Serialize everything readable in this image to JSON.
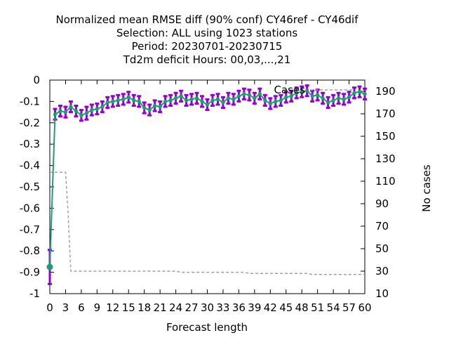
{
  "chart_data": {
    "type": "line",
    "title_lines": [
      "Normalized mean RMSE diff (90% conf) CY46ref - CY46dif",
      "Selection: ALL using  1023 stations",
      "Period: 20230701-20230715",
      "Td2m deficit   Hours:  00,03,...,21"
    ],
    "xlabel": "Forecast length",
    "ylabel_right": "No cases",
    "xlim": [
      0,
      60
    ],
    "ylim": [
      -1,
      0
    ],
    "y2lim": [
      10,
      200
    ],
    "x_ticks": [
      "0",
      "3",
      "6",
      "9",
      "12",
      "15",
      "18",
      "21",
      "24",
      "27",
      "30",
      "33",
      "36",
      "39",
      "42",
      "45",
      "48",
      "51",
      "54",
      "57",
      "60"
    ],
    "y_ticks": [
      "0",
      "-0.1",
      "-0.2",
      "-0.3",
      "-0.4",
      "-0.5",
      "-0.6",
      "-0.7",
      "-0.8",
      "-0.9",
      "-1"
    ],
    "y2_ticks": [
      "190",
      "170",
      "150",
      "130",
      "110",
      "90",
      "70",
      "50",
      "30",
      "10"
    ],
    "legend": {
      "cases_label": "Cases",
      "placement": "top-right"
    },
    "series": [
      {
        "name": "rmse-diff",
        "color": "#1aa070",
        "errcolor": "#9400d3",
        "x": [
          0,
          1,
          2,
          3,
          4,
          5,
          6,
          7,
          8,
          9,
          10,
          11,
          12,
          13,
          14,
          15,
          16,
          17,
          18,
          19,
          20,
          21,
          22,
          23,
          24,
          25,
          26,
          27,
          28,
          29,
          30,
          31,
          32,
          33,
          34,
          35,
          36,
          37,
          38,
          39,
          40,
          41,
          42,
          43,
          44,
          45,
          46,
          47,
          48,
          49,
          50,
          51,
          52,
          53,
          54,
          55,
          56,
          57,
          58,
          59,
          60
        ],
        "y": [
          -0.875,
          -0.16,
          -0.145,
          -0.15,
          -0.125,
          -0.145,
          -0.165,
          -0.155,
          -0.14,
          -0.135,
          -0.125,
          -0.105,
          -0.1,
          -0.095,
          -0.09,
          -0.08,
          -0.095,
          -0.1,
          -0.13,
          -0.14,
          -0.12,
          -0.125,
          -0.1,
          -0.095,
          -0.085,
          -0.075,
          -0.095,
          -0.09,
          -0.085,
          -0.1,
          -0.115,
          -0.095,
          -0.09,
          -0.105,
          -0.085,
          -0.09,
          -0.075,
          -0.065,
          -0.07,
          -0.085,
          -0.065,
          -0.095,
          -0.11,
          -0.1,
          -0.095,
          -0.08,
          -0.075,
          -0.06,
          -0.055,
          -0.05,
          -0.075,
          -0.07,
          -0.085,
          -0.105,
          -0.095,
          -0.085,
          -0.09,
          -0.08,
          -0.06,
          -0.055,
          -0.065
        ],
        "err": [
          0.08,
          0.025,
          0.025,
          0.025,
          0.025,
          0.025,
          0.025,
          0.03,
          0.025,
          0.025,
          0.025,
          0.025,
          0.025,
          0.025,
          0.025,
          0.025,
          0.025,
          0.025,
          0.025,
          0.025,
          0.025,
          0.025,
          0.025,
          0.025,
          0.025,
          0.025,
          0.025,
          0.025,
          0.025,
          0.025,
          0.025,
          0.025,
          0.025,
          0.025,
          0.025,
          0.025,
          0.025,
          0.025,
          0.025,
          0.025,
          0.025,
          0.025,
          0.025,
          0.025,
          0.025,
          0.025,
          0.025,
          0.025,
          0.025,
          0.025,
          0.025,
          0.025,
          0.025,
          0.025,
          0.025,
          0.025,
          0.025,
          0.025,
          0.025,
          0.025,
          0.025
        ]
      },
      {
        "name": "cases",
        "axis": "right",
        "color": "#a0a0a0",
        "dashed": true,
        "x": [
          0,
          3,
          3.5,
          4,
          24,
          25,
          37,
          38,
          49,
          50,
          60
        ],
        "y": [
          118,
          118,
          80,
          30,
          30,
          29,
          29,
          28,
          28,
          27,
          27
        ]
      }
    ],
    "grid": false
  }
}
